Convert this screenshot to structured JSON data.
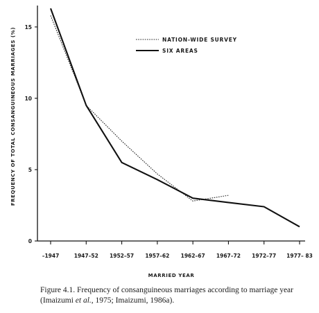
{
  "chart_data": {
    "type": "line",
    "categories": [
      "–1947",
      "1947–52",
      "1952–57",
      "1957–62",
      "1962–67",
      "1967–72",
      "1972–77",
      "1977– 83"
    ],
    "xlabel": "MARRIED YEAR",
    "ylabel": "FREQUENCY OF TOTAL CONSANGUINEOUS MARRIAGES (%)",
    "ylim": [
      0,
      16.5
    ],
    "yticks": [
      0,
      5,
      10,
      15
    ],
    "legend_position": "top-right",
    "series": [
      {
        "name": "NATION-WIDE SURVEY",
        "style": "dotted",
        "color": "#222222",
        "values": [
          15.8,
          9.5,
          7.0,
          4.7,
          2.8,
          3.2,
          null,
          null
        ]
      },
      {
        "name": "SIX AREAS",
        "style": "solid",
        "color": "#111111",
        "values": [
          16.3,
          9.5,
          5.5,
          4.3,
          3.0,
          2.7,
          2.4,
          1.0
        ]
      }
    ]
  },
  "caption": {
    "prefix": "Figure 4.1.   Frequency of consanguineous marriages according to marriage year (Imaizumi ",
    "etal": "et al.",
    "suffix": ", 1975; Imaizumi, 1986a)."
  }
}
